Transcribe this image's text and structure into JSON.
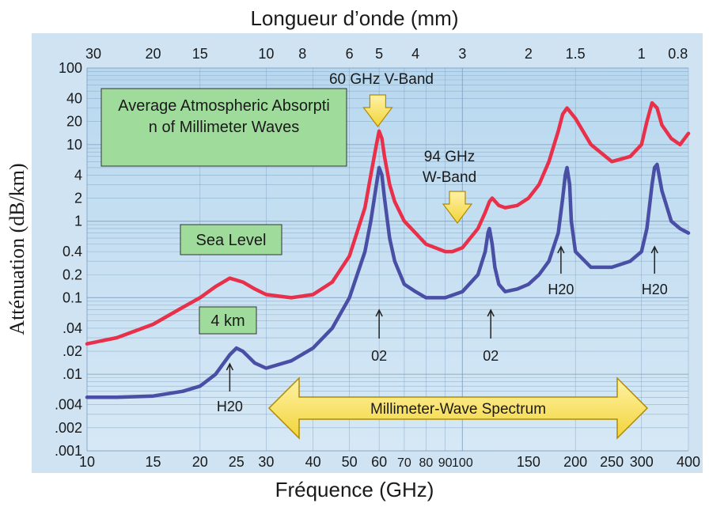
{
  "chart_data": {
    "type": "line",
    "top_axis_label": "Longueur d’onde (mm)",
    "xlabel": "Fréquence (GHz)",
    "ylabel": "Atténuation (dB/km)",
    "x_scale": "log",
    "y_scale": "log",
    "xlim": [
      10,
      400
    ],
    "ylim": [
      0.001,
      100
    ],
    "x_ticks": [
      "10",
      "15",
      "20",
      "25",
      "30",
      "40",
      "50",
      "60",
      "70",
      "80",
      "90",
      "100",
      "150",
      "200",
      "250",
      "300",
      "400"
    ],
    "x_tick_values": [
      10,
      15,
      20,
      25,
      30,
      40,
      50,
      60,
      70,
      80,
      90,
      100,
      150,
      200,
      250,
      300,
      400
    ],
    "top_ticks": [
      "30",
      "20",
      "15",
      "10",
      "8",
      "6",
      "5",
      "4",
      "3",
      "2",
      "1.5",
      "1",
      "0.8"
    ],
    "top_tick_values_mm": [
      30,
      20,
      15,
      10,
      8,
      6,
      5,
      4,
      3,
      2,
      1.5,
      1,
      0.8
    ],
    "y_ticks": [
      "100",
      "40",
      "20",
      "10",
      "4",
      "2",
      "1",
      "0.4",
      "0.2",
      "0.1",
      ".04",
      ".02",
      ".01",
      ".004",
      ".002",
      ".001"
    ],
    "y_tick_values": [
      100,
      40,
      20,
      10,
      4,
      2,
      1,
      0.4,
      0.2,
      0.1,
      0.04,
      0.02,
      0.01,
      0.004,
      0.002,
      0.001
    ],
    "grid": true,
    "series": [
      {
        "color": "#e8304a",
        "x": [
          10,
          12,
          15,
          18,
          20,
          22,
          24,
          26,
          28,
          30,
          35,
          40,
          45,
          50,
          55,
          57,
          59,
          60,
          61,
          62,
          64,
          66,
          70,
          75,
          80,
          90,
          94,
          100,
          110,
          115,
          118,
          120,
          125,
          130,
          140,
          150,
          160,
          170,
          180,
          185,
          190,
          200,
          220,
          250,
          280,
          300,
          310,
          320,
          330,
          340,
          360,
          380,
          400
        ],
        "y": [
          0.025,
          0.03,
          0.045,
          0.075,
          0.1,
          0.14,
          0.18,
          0.16,
          0.13,
          0.11,
          0.1,
          0.11,
          0.16,
          0.35,
          1.5,
          4,
          10,
          15,
          12,
          7,
          3,
          1.8,
          1,
          0.7,
          0.5,
          0.4,
          0.4,
          0.45,
          0.8,
          1.3,
          1.8,
          2,
          1.6,
          1.5,
          1.6,
          2,
          3,
          6,
          15,
          25,
          30,
          22,
          10,
          6,
          7,
          10,
          20,
          35,
          30,
          18,
          12,
          10,
          14
        ]
      },
      {
        "color": "#4a4fa6",
        "x": [
          10,
          12,
          15,
          18,
          20,
          22,
          24,
          25,
          26,
          28,
          30,
          35,
          40,
          45,
          50,
          55,
          57,
          59,
          60,
          61,
          62,
          64,
          66,
          70,
          75,
          80,
          90,
          100,
          110,
          115,
          117,
          118,
          120,
          122,
          125,
          130,
          140,
          150,
          160,
          170,
          180,
          185,
          188,
          190,
          193,
          195,
          200,
          220,
          250,
          280,
          300,
          310,
          320,
          325,
          330,
          340,
          360,
          380,
          400
        ],
        "y": [
          0.005,
          0.005,
          0.0052,
          0.006,
          0.007,
          0.01,
          0.018,
          0.022,
          0.02,
          0.014,
          0.012,
          0.015,
          0.022,
          0.04,
          0.1,
          0.4,
          1,
          3,
          5,
          4,
          2,
          0.6,
          0.3,
          0.15,
          0.12,
          0.1,
          0.1,
          0.12,
          0.2,
          0.4,
          0.7,
          0.8,
          0.5,
          0.25,
          0.15,
          0.12,
          0.13,
          0.15,
          0.2,
          0.3,
          0.7,
          2,
          4,
          5,
          3,
          1,
          0.4,
          0.25,
          0.25,
          0.3,
          0.4,
          0.8,
          3,
          5,
          5.5,
          2.5,
          1,
          0.8,
          0.7
        ]
      }
    ],
    "annotations": {
      "title_box": "Average Atmospheric Absorption of Millimeter Waves",
      "sea_level": "Sea Level",
      "four_km": "4 km",
      "v_band": "60 GHz V-Band",
      "w_band": "94 GHz W-Band",
      "spectrum": "Millimeter-Wave Spectrum",
      "h2o": "H20",
      "o2": "02",
      "markers": [
        {
          "label": "H20",
          "x": 24
        },
        {
          "label": "02",
          "x": 60
        },
        {
          "label": "02",
          "x": 119
        },
        {
          "label": "H20",
          "x": 183
        },
        {
          "label": "H20",
          "x": 325
        }
      ]
    }
  }
}
